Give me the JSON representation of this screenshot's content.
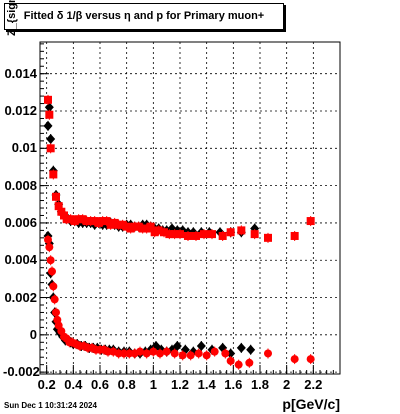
{
  "chart_data": {
    "type": "scatter",
    "title": "Fitted δ 1/β versus η and p for Primary muon+",
    "xlabel": "p[GeV/c]",
    "ylabel": "Z_{sigma}^{d}  tanv",
    "xlim": [
      0.15,
      2.4
    ],
    "ylim": [
      -0.0021,
      0.0157
    ],
    "x_ticks": [
      "0.2",
      "0.4",
      "0.6",
      "0.8",
      "1",
      "1.2",
      "1.4",
      "1.6",
      "1.8",
      "2",
      "2.2"
    ],
    "x_tick_values": [
      0.2,
      0.4,
      0.6,
      0.8,
      1.0,
      1.2,
      1.4,
      1.6,
      1.8,
      2.0,
      2.2
    ],
    "y_ticks": [
      "-0.002",
      "0",
      "0.002",
      "0.004",
      "0.006",
      "0.008",
      "0.01",
      "0.012",
      "0.014"
    ],
    "y_tick_values": [
      -0.002,
      0,
      0.002,
      0.004,
      0.006,
      0.008,
      0.01,
      0.012,
      0.014
    ],
    "grid": true,
    "series": [
      {
        "color": "#000000",
        "marker": "diamond",
        "branch": "upper",
        "points": [
          [
            0.21,
            0.0112
          ],
          [
            0.22,
            0.0122
          ],
          [
            0.23,
            0.0105
          ],
          [
            0.25,
            0.0088
          ],
          [
            0.27,
            0.0075
          ],
          [
            0.29,
            0.007
          ],
          [
            0.31,
            0.0066
          ],
          [
            0.33,
            0.0064
          ],
          [
            0.35,
            0.0063
          ],
          [
            0.38,
            0.0061
          ],
          [
            0.41,
            0.0061
          ],
          [
            0.44,
            0.006
          ],
          [
            0.47,
            0.006
          ],
          [
            0.5,
            0.006
          ],
          [
            0.53,
            0.006
          ],
          [
            0.56,
            0.0059
          ],
          [
            0.59,
            0.006
          ],
          [
            0.62,
            0.0059
          ],
          [
            0.65,
            0.0059
          ],
          [
            0.68,
            0.006
          ],
          [
            0.71,
            0.0059
          ],
          [
            0.74,
            0.0058
          ],
          [
            0.77,
            0.0058
          ],
          [
            0.8,
            0.0059
          ],
          [
            0.83,
            0.0059
          ],
          [
            0.86,
            0.0058
          ],
          [
            0.89,
            0.0058
          ],
          [
            0.92,
            0.0059
          ],
          [
            0.95,
            0.0059
          ],
          [
            0.98,
            0.0058
          ],
          [
            1.01,
            0.0057
          ],
          [
            1.04,
            0.0057
          ],
          [
            1.07,
            0.0056
          ],
          [
            1.1,
            0.0056
          ],
          [
            1.14,
            0.0057
          ],
          [
            1.18,
            0.0056
          ],
          [
            1.22,
            0.0056
          ],
          [
            1.26,
            0.0055
          ],
          [
            1.3,
            0.0055
          ],
          [
            1.36,
            0.0055
          ],
          [
            1.42,
            0.0055
          ],
          [
            1.5,
            0.0055
          ],
          [
            1.58,
            0.0055
          ],
          [
            1.66,
            0.0055
          ],
          [
            1.76,
            0.0057
          ]
        ]
      },
      {
        "color": "#000000",
        "marker": "diamond",
        "branch": "lower",
        "points": [
          [
            0.21,
            0.0053
          ],
          [
            0.22,
            0.0049
          ],
          [
            0.23,
            0.0033
          ],
          [
            0.24,
            0.0027
          ],
          [
            0.25,
            0.002
          ],
          [
            0.26,
            0.0012
          ],
          [
            0.27,
            0.0007
          ],
          [
            0.28,
            0.0003
          ],
          [
            0.3,
            0.0001
          ],
          [
            0.32,
            -0.0001
          ],
          [
            0.34,
            -0.0003
          ],
          [
            0.36,
            -0.0003
          ],
          [
            0.38,
            -0.0004
          ],
          [
            0.4,
            -0.0005
          ],
          [
            0.43,
            -0.0005
          ],
          [
            0.46,
            -0.0006
          ],
          [
            0.49,
            -0.0006
          ],
          [
            0.52,
            -0.0007
          ],
          [
            0.55,
            -0.0007
          ],
          [
            0.58,
            -0.0007
          ],
          [
            0.61,
            -0.0008
          ],
          [
            0.64,
            -0.0008
          ],
          [
            0.67,
            -0.0008
          ],
          [
            0.7,
            -0.0008
          ],
          [
            0.74,
            -0.0009
          ],
          [
            0.78,
            -0.0009
          ],
          [
            0.82,
            -0.0009
          ],
          [
            0.86,
            -0.001
          ],
          [
            0.9,
            -0.001
          ],
          [
            0.94,
            -0.0009
          ],
          [
            0.98,
            -0.0008
          ],
          [
            1.02,
            -0.0006
          ],
          [
            1.06,
            -0.0008
          ],
          [
            1.1,
            -0.0009
          ],
          [
            1.14,
            -0.0008
          ],
          [
            1.18,
            -0.0006
          ],
          [
            1.24,
            -0.0008
          ],
          [
            1.3,
            -0.0009
          ],
          [
            1.36,
            -0.0006
          ],
          [
            1.44,
            -0.0008
          ],
          [
            1.52,
            -0.0007
          ],
          [
            1.58,
            -0.001
          ],
          [
            1.66,
            -0.0007
          ],
          [
            1.73,
            -0.0008
          ]
        ]
      },
      {
        "color": "#ff0000",
        "marker": "square",
        "branch": "upper",
        "points": [
          [
            0.21,
            0.0126
          ],
          [
            0.22,
            0.0118
          ],
          [
            0.23,
            0.01
          ],
          [
            0.25,
            0.0086
          ],
          [
            0.27,
            0.0074
          ],
          [
            0.29,
            0.0069
          ],
          [
            0.31,
            0.0066
          ],
          [
            0.33,
            0.0064
          ],
          [
            0.35,
            0.0062
          ],
          [
            0.38,
            0.0062
          ],
          [
            0.41,
            0.0061
          ],
          [
            0.44,
            0.0062
          ],
          [
            0.47,
            0.0062
          ],
          [
            0.5,
            0.0061
          ],
          [
            0.53,
            0.0061
          ],
          [
            0.56,
            0.0061
          ],
          [
            0.59,
            0.006
          ],
          [
            0.62,
            0.0061
          ],
          [
            0.65,
            0.0061
          ],
          [
            0.68,
            0.0059
          ],
          [
            0.71,
            0.006
          ],
          [
            0.74,
            0.0059
          ],
          [
            0.77,
            0.0059
          ],
          [
            0.8,
            0.0058
          ],
          [
            0.83,
            0.0057
          ],
          [
            0.86,
            0.0058
          ],
          [
            0.89,
            0.0058
          ],
          [
            0.92,
            0.0057
          ],
          [
            0.95,
            0.0057
          ],
          [
            0.98,
            0.0058
          ],
          [
            1.01,
            0.0055
          ],
          [
            1.04,
            0.0056
          ],
          [
            1.08,
            0.0055
          ],
          [
            1.12,
            0.0054
          ],
          [
            1.16,
            0.0054
          ],
          [
            1.2,
            0.0054
          ],
          [
            1.26,
            0.0053
          ],
          [
            1.32,
            0.0053
          ],
          [
            1.38,
            0.0054
          ],
          [
            1.44,
            0.0054
          ],
          [
            1.52,
            0.0053
          ],
          [
            1.58,
            0.0055
          ],
          [
            1.66,
            0.0056
          ],
          [
            1.76,
            0.0054
          ],
          [
            1.86,
            0.0052
          ],
          [
            2.06,
            0.0053
          ],
          [
            2.18,
            0.0061
          ]
        ]
      },
      {
        "color": "#ff0000",
        "marker": "circle",
        "branch": "lower",
        "points": [
          [
            0.21,
            0.0051
          ],
          [
            0.22,
            0.0047
          ],
          [
            0.23,
            0.004
          ],
          [
            0.24,
            0.0034
          ],
          [
            0.25,
            0.0026
          ],
          [
            0.26,
            0.0019
          ],
          [
            0.27,
            0.0012
          ],
          [
            0.28,
            0.0008
          ],
          [
            0.29,
            0.0005
          ],
          [
            0.31,
            0.0002
          ],
          [
            0.33,
            -0.0001
          ],
          [
            0.35,
            -0.0002
          ],
          [
            0.37,
            -0.0004
          ],
          [
            0.39,
            -0.0004
          ],
          [
            0.42,
            -0.0005
          ],
          [
            0.45,
            -0.0006
          ],
          [
            0.48,
            -0.0006
          ],
          [
            0.51,
            -0.0007
          ],
          [
            0.54,
            -0.0007
          ],
          [
            0.57,
            -0.0008
          ],
          [
            0.6,
            -0.0008
          ],
          [
            0.63,
            -0.0008
          ],
          [
            0.66,
            -0.0009
          ],
          [
            0.7,
            -0.0009
          ],
          [
            0.74,
            -0.001
          ],
          [
            0.78,
            -0.001
          ],
          [
            0.82,
            -0.001
          ],
          [
            0.86,
            -0.001
          ],
          [
            0.9,
            -0.0009
          ],
          [
            0.95,
            -0.001
          ],
          [
            1.0,
            -0.0009
          ],
          [
            1.05,
            -0.001
          ],
          [
            1.1,
            -0.0009
          ],
          [
            1.16,
            -0.001
          ],
          [
            1.22,
            -0.0011
          ],
          [
            1.28,
            -0.0011
          ],
          [
            1.34,
            -0.001
          ],
          [
            1.4,
            -0.0011
          ],
          [
            1.46,
            -0.0009
          ],
          [
            1.54,
            -0.001
          ],
          [
            1.58,
            -0.0014
          ],
          [
            1.64,
            -0.0016
          ],
          [
            1.72,
            -0.0015
          ],
          [
            1.86,
            -0.001
          ],
          [
            2.06,
            -0.0013
          ],
          [
            2.18,
            -0.0013
          ]
        ]
      }
    ]
  },
  "footer_text": "Sun Dec  1 10:31:24 2024"
}
